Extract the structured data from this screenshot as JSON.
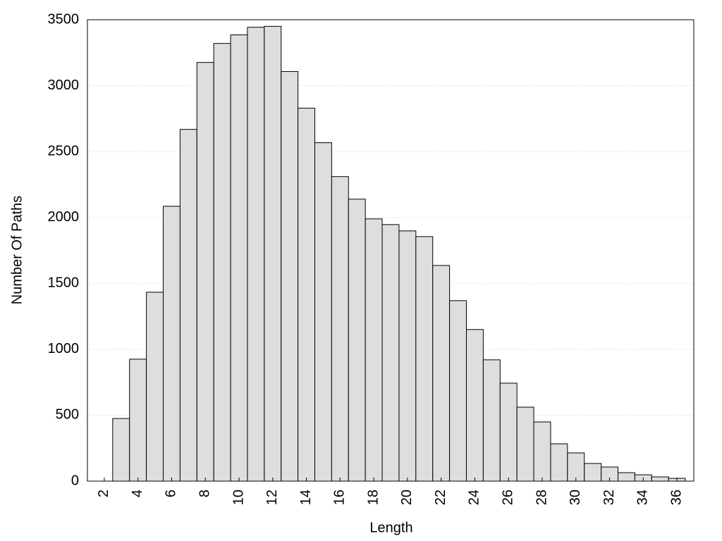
{
  "chart_data": {
    "type": "histogram",
    "xlabel": "Length",
    "ylabel": "Number Of Paths",
    "bins": [
      2.5,
      3.5,
      4.5,
      5.5,
      6.5,
      7.5,
      8.5,
      9.5,
      10.5,
      11.5,
      12.5,
      13.5,
      14.5,
      15.5,
      16.5,
      17.5,
      18.5,
      19.5,
      20.5,
      21.5,
      22.5,
      23.5,
      24.5,
      25.5,
      26.5,
      27.5,
      28.5,
      29.5,
      30.5,
      31.5,
      32.5,
      33.5,
      34.5,
      35.5,
      36.5
    ],
    "values": [
      475,
      925,
      1433,
      2085,
      2668,
      3176,
      3320,
      3385,
      3443,
      3450,
      3107,
      2829,
      2567,
      2310,
      2139,
      1989,
      1946,
      1898,
      1855,
      1636,
      1369,
      1150,
      920,
      743,
      561,
      449,
      283,
      214,
      134,
      107,
      64,
      48,
      32,
      21
    ],
    "color": "#dedede",
    "line": {
      "color": "#000000",
      "x": [
        2,
        3,
        4,
        5,
        6,
        7,
        8,
        9,
        10,
        11,
        12,
        12.5,
        13,
        14,
        15,
        16,
        17,
        18,
        19,
        20,
        21,
        22,
        23,
        24,
        25,
        26,
        27,
        28,
        29,
        30,
        31,
        32,
        33,
        34,
        35,
        36,
        37
      ],
      "values": [
        0,
        470,
        900,
        1400,
        2050,
        2650,
        3150,
        3300,
        3380,
        3430,
        3440,
        3300,
        3100,
        2820,
        2560,
        2310,
        2140,
        1990,
        1945,
        1895,
        1840,
        1620,
        1370,
        1150,
        920,
        740,
        560,
        450,
        290,
        210,
        130,
        100,
        60,
        40,
        20,
        10,
        0
      ]
    },
    "xlim": [
      1,
      37
    ],
    "ylim": [
      0,
      3500
    ],
    "xticks": [
      2,
      4,
      6,
      8,
      10,
      12,
      14,
      16,
      18,
      20,
      22,
      24,
      26,
      28,
      30,
      32,
      34,
      36
    ],
    "yticks": [
      0,
      500,
      1000,
      1500,
      2000,
      2500,
      3000,
      3500
    ],
    "grid": true
  }
}
